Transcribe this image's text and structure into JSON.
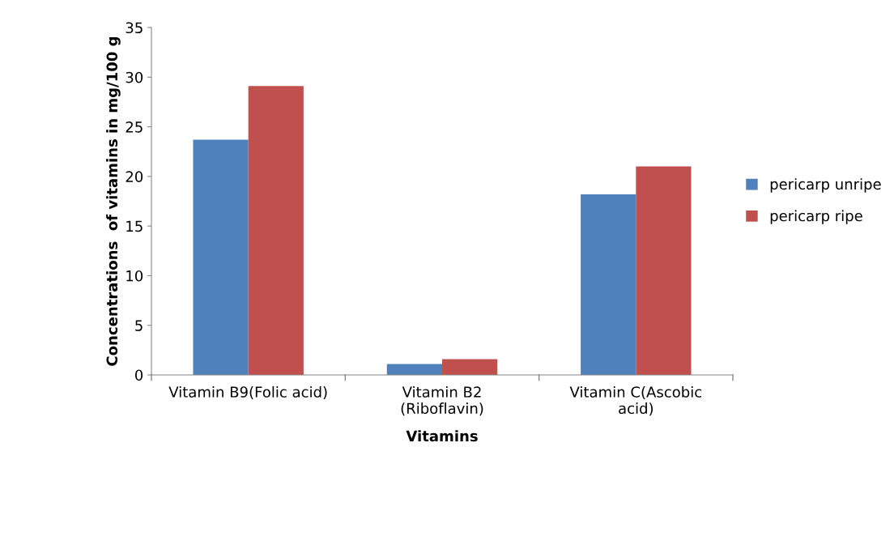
{
  "chart_data": {
    "type": "bar",
    "xlabel": "Vitamins",
    "ylabel": "Concentrations  of vitamins in mg/100 g",
    "categories": [
      "Vitamin B9(Folic acid)",
      "Vitamin B2\n(Riboflavin)",
      "Vitamin C(Ascobic\nacid)"
    ],
    "series": [
      {
        "name": "pericarp unripe",
        "color": "#4f81bd",
        "values": [
          23.7,
          1.1,
          18.2
        ]
      },
      {
        "name": "pericarp ripe",
        "color": "#c0504d",
        "values": [
          29.1,
          1.6,
          21.0
        ]
      }
    ],
    "ylim": [
      0,
      35
    ],
    "yticks": [
      0,
      5,
      10,
      15,
      20,
      25,
      30,
      35
    ],
    "grid": false,
    "legend": "right"
  }
}
